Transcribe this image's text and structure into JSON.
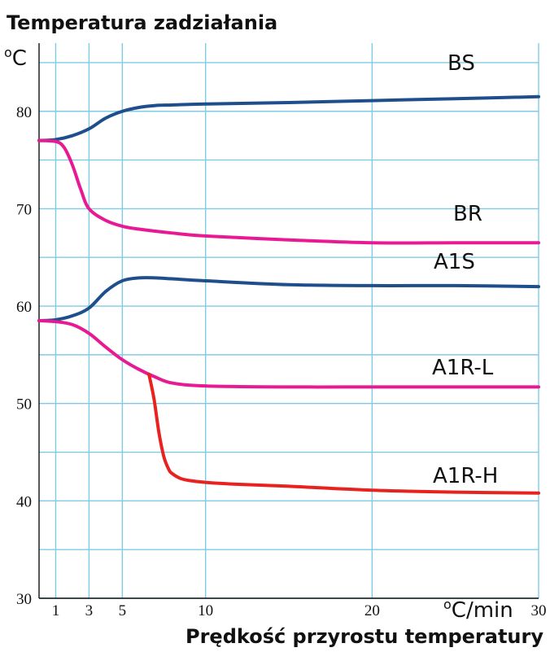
{
  "chart_data": {
    "type": "line",
    "title": "Temperatura zadziałania",
    "xlabel": "Prędkość przyrostu temperatury",
    "ylabel": "°C",
    "x_unit": "°C/min",
    "y_unit": "°C",
    "xlim": [
      0,
      30
    ],
    "ylim": [
      30,
      87
    ],
    "x_ticks": [
      1,
      3,
      5,
      10,
      20,
      30
    ],
    "y_ticks": [
      30,
      40,
      50,
      60,
      70,
      80
    ],
    "x_gridlines": [
      1,
      3,
      5,
      10,
      20,
      30
    ],
    "y_gridlines": [
      30,
      35,
      40,
      45,
      50,
      55,
      60,
      65,
      70,
      75,
      80,
      85
    ],
    "grid": true,
    "series": [
      {
        "name": "BS",
        "color": "#1e4f8c",
        "x": [
          0,
          1,
          2,
          3,
          4,
          5,
          6,
          7,
          8,
          10,
          15,
          20,
          25,
          30
        ],
        "y": [
          77,
          77.1,
          77.5,
          78.2,
          79.3,
          80,
          80.4,
          80.6,
          80.65,
          80.75,
          80.9,
          81.1,
          81.3,
          81.5
        ]
      },
      {
        "name": "BR",
        "color": "#e81a93",
        "x": [
          0,
          1,
          1.5,
          2,
          2.5,
          3,
          4,
          5,
          6,
          8,
          10,
          15,
          20,
          25,
          30
        ],
        "y": [
          77,
          76.9,
          76.3,
          74.5,
          72,
          70,
          68.8,
          68.2,
          67.9,
          67.5,
          67.2,
          66.8,
          66.5,
          66.5,
          66.5
        ]
      },
      {
        "name": "A1S",
        "color": "#1e4f8c",
        "x": [
          0,
          1,
          2,
          3,
          4,
          5,
          6,
          7,
          8,
          10,
          15,
          20,
          25,
          30
        ],
        "y": [
          58.5,
          58.6,
          59,
          59.8,
          61.5,
          62.6,
          62.9,
          62.9,
          62.8,
          62.6,
          62.2,
          62.1,
          62.1,
          62
        ],
        "note": null
      },
      {
        "name": "A1R-L",
        "color": "#e81a93",
        "x": [
          0,
          1,
          2,
          3,
          4,
          5,
          6,
          7,
          8,
          10,
          15,
          20,
          25,
          30
        ],
        "y": [
          58.5,
          58.4,
          58.1,
          57.2,
          55.8,
          54.5,
          53.5,
          52.7,
          52.1,
          51.8,
          51.7,
          51.7,
          51.7,
          51.7
        ]
      },
      {
        "name": "A1R-H",
        "color": "#e8231f",
        "x": [
          6.6,
          6.9,
          7.2,
          7.5,
          7.8,
          8,
          8.5,
          9,
          10,
          12,
          15,
          20,
          25,
          30
        ],
        "y": [
          53,
          50.5,
          47,
          44.5,
          43.2,
          42.8,
          42.3,
          42.1,
          41.9,
          41.7,
          41.5,
          41.1,
          40.9,
          40.8
        ]
      }
    ]
  }
}
